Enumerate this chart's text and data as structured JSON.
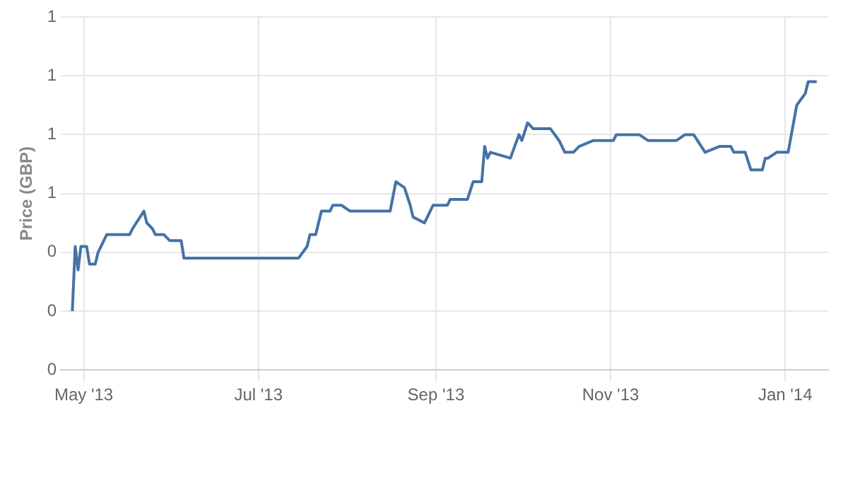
{
  "chart_data": {
    "type": "line",
    "ylabel": "Price (GBP)",
    "x": [
      "2013-04-27",
      "2013-04-28",
      "2013-04-29",
      "2013-04-30",
      "2013-05-02",
      "2013-05-03",
      "2013-05-05",
      "2013-05-06",
      "2013-05-09",
      "2013-05-17",
      "2013-05-18",
      "2013-05-22",
      "2013-05-23",
      "2013-05-25",
      "2013-05-26",
      "2013-05-29",
      "2013-05-31",
      "2013-06-04",
      "2013-06-05",
      "2013-06-08",
      "2013-07-15",
      "2013-07-18",
      "2013-07-19",
      "2013-07-21",
      "2013-07-23",
      "2013-07-26",
      "2013-07-27",
      "2013-07-30",
      "2013-08-02",
      "2013-08-13",
      "2013-08-16",
      "2013-08-18",
      "2013-08-21",
      "2013-08-23",
      "2013-08-24",
      "2013-08-28",
      "2013-08-29",
      "2013-08-31",
      "2013-09-05",
      "2013-09-06",
      "2013-09-12",
      "2013-09-14",
      "2013-09-17",
      "2013-09-18",
      "2013-09-19",
      "2013-09-20",
      "2013-09-27",
      "2013-09-30",
      "2013-10-01",
      "2013-10-03",
      "2013-10-05",
      "2013-10-11",
      "2013-10-14",
      "2013-10-16",
      "2013-10-19",
      "2013-10-21",
      "2013-10-26",
      "2013-11-02",
      "2013-11-03",
      "2013-11-07",
      "2013-11-11",
      "2013-11-14",
      "2013-11-24",
      "2013-11-27",
      "2013-11-30",
      "2013-12-04",
      "2013-12-09",
      "2013-12-13",
      "2013-12-14",
      "2013-12-18",
      "2013-12-20",
      "2013-12-24",
      "2013-12-25",
      "2013-12-26",
      "2013-12-29",
      "2014-01-02",
      "2014-01-05",
      "2014-01-08",
      "2014-01-09",
      "2014-01-12"
    ],
    "series": [
      {
        "color": "#4572a7",
        "values": [
          0.3,
          0.41,
          0.37,
          0.41,
          0.41,
          0.38,
          0.38,
          0.4,
          0.43,
          0.43,
          0.44,
          0.47,
          0.45,
          0.44,
          0.43,
          0.43,
          0.42,
          0.42,
          0.39,
          0.39,
          0.39,
          0.41,
          0.43,
          0.43,
          0.47,
          0.47,
          0.48,
          0.48,
          0.47,
          0.47,
          0.47,
          0.52,
          0.51,
          0.48,
          0.46,
          0.45,
          0.46,
          0.48,
          0.48,
          0.49,
          0.49,
          0.52,
          0.52,
          0.58,
          0.56,
          0.57,
          0.56,
          0.6,
          0.59,
          0.62,
          0.61,
          0.61,
          0.59,
          0.57,
          0.57,
          0.58,
          0.59,
          0.59,
          0.6,
          0.6,
          0.6,
          0.59,
          0.59,
          0.6,
          0.6,
          0.57,
          0.58,
          0.58,
          0.57,
          0.57,
          0.54,
          0.54,
          0.56,
          0.56,
          0.57,
          0.57,
          0.65,
          0.67,
          0.69,
          0.69
        ]
      }
    ],
    "xlim": [
      "2013-04-23",
      "2014-01-16"
    ],
    "xticks": [
      {
        "value": "2013-05-01",
        "label": "May '13"
      },
      {
        "value": "2013-07-01",
        "label": "Jul '13"
      },
      {
        "value": "2013-09-01",
        "label": "Sep '13"
      },
      {
        "value": "2013-11-01",
        "label": "Nov '13"
      },
      {
        "value": "2014-01-01",
        "label": "Jan '14"
      }
    ],
    "ylim": [
      0.2,
      0.8
    ],
    "yticks": [
      {
        "value": 0.2,
        "label": "0"
      },
      {
        "value": 0.3,
        "label": "0"
      },
      {
        "value": 0.4,
        "label": "0"
      },
      {
        "value": 0.5,
        "label": "1"
      },
      {
        "value": 0.6,
        "label": "1"
      },
      {
        "value": 0.7,
        "label": "1"
      },
      {
        "value": 0.8,
        "label": "1"
      }
    ],
    "grid": true,
    "marker": "none",
    "line_style": "solid",
    "legend": false
  }
}
